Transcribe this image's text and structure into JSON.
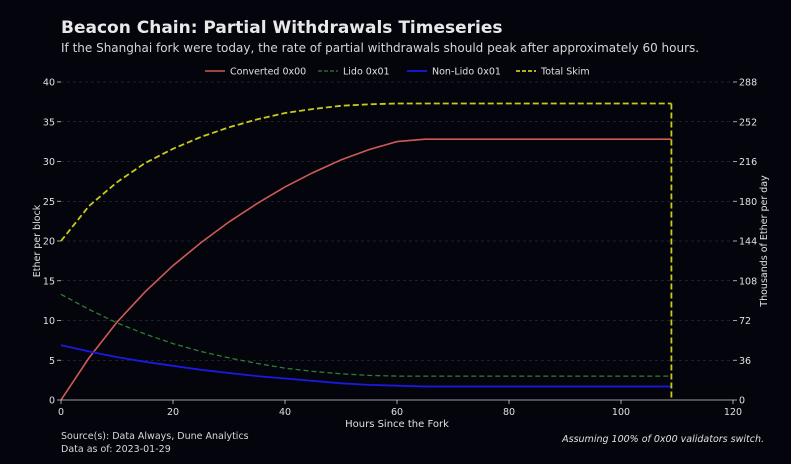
{
  "header": {
    "title": "Beacon Chain: Partial Withdrawals Timeseries",
    "subtitle": "If the Shanghai fork were today, the rate of partial withdrawals should peak after approximately 60 hours."
  },
  "footer": {
    "source_line1": "Source(s): Data Always, Dune Analytics",
    "source_line2": "Data as of: 2023-01-29",
    "note": "Assuming 100% of 0x00 validators switch."
  },
  "colors": {
    "background": "#04040d",
    "converted": "#d05a55",
    "lido": "#2f7d32",
    "nonlido": "#1a1ae0",
    "skim": "#c9c91a",
    "grid": "#3a3a4a",
    "axis": "#cccccc"
  },
  "chart_data": {
    "type": "line",
    "xlabel": "Hours Since the Fork",
    "ylabel": "Ether per block",
    "y2label": "Thousands of Ether per day",
    "xlim": [
      0,
      120
    ],
    "ylim": [
      0,
      40
    ],
    "y2lim": [
      0,
      288
    ],
    "xticks": [
      "0",
      "20",
      "40",
      "60",
      "80",
      "100",
      "120"
    ],
    "yticks": [
      "0",
      "5",
      "10",
      "15",
      "20",
      "25",
      "30",
      "35",
      "40"
    ],
    "y2ticks": [
      "0",
      "36",
      "72",
      "108",
      "144",
      "180",
      "216",
      "252",
      "288"
    ],
    "grid": "horizontal dashed",
    "legend_position": "top-center",
    "x": [
      0,
      5,
      10,
      15,
      20,
      25,
      30,
      35,
      40,
      45,
      50,
      55,
      60,
      65,
      70,
      75,
      80,
      85,
      90,
      95,
      100,
      105,
      109
    ],
    "series": [
      {
        "name": "Converted 0x00",
        "style": "solid",
        "values": [
          0,
          5.3,
          9.8,
          13.6,
          16.9,
          19.8,
          22.4,
          24.7,
          26.8,
          28.6,
          30.2,
          31.5,
          32.5,
          32.8,
          32.8,
          32.8,
          32.8,
          32.8,
          32.8,
          32.8,
          32.8,
          32.8,
          32.8
        ]
      },
      {
        "name": "Lido 0x01",
        "style": "dashed",
        "values": [
          13.3,
          11.4,
          9.7,
          8.3,
          7.1,
          6.1,
          5.3,
          4.6,
          4.0,
          3.6,
          3.3,
          3.1,
          3.0,
          3.0,
          3.0,
          3.0,
          3.0,
          3.0,
          3.0,
          3.0,
          3.0,
          3.0,
          3.0
        ]
      },
      {
        "name": "Non-Lido 0x01",
        "style": "solid",
        "values": [
          6.9,
          6.1,
          5.4,
          4.8,
          4.3,
          3.8,
          3.4,
          3.0,
          2.7,
          2.4,
          2.1,
          1.9,
          1.8,
          1.7,
          1.7,
          1.7,
          1.7,
          1.7,
          1.7,
          1.7,
          1.7,
          1.7,
          1.7
        ]
      },
      {
        "name": "Total Skim",
        "style": "dashed",
        "values": [
          20.0,
          24.4,
          27.4,
          29.8,
          31.6,
          33.1,
          34.3,
          35.3,
          36.1,
          36.6,
          37.0,
          37.2,
          37.3,
          37.3,
          37.3,
          37.3,
          37.3,
          37.3,
          37.3,
          37.3,
          37.3,
          37.3,
          37.3
        ]
      }
    ],
    "dropoff_x": 109
  }
}
